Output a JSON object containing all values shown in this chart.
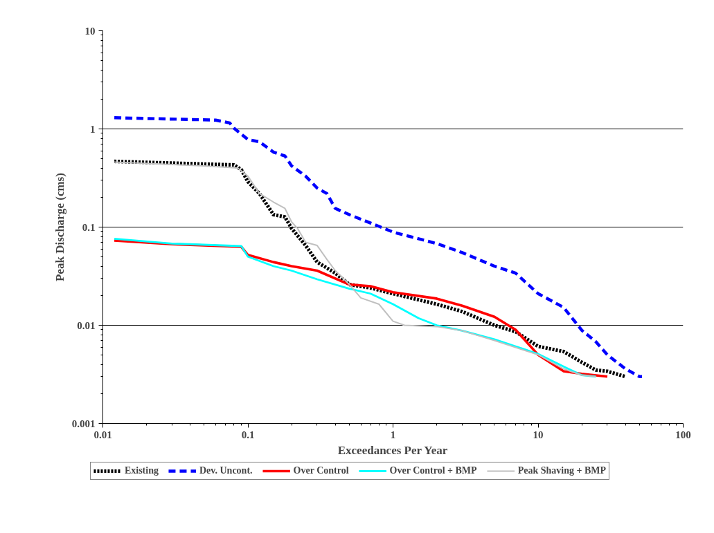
{
  "chart_data": {
    "type": "line",
    "xlabel": "Exceedances Per Year",
    "ylabel": "Peak Discharge (cms)",
    "log": "xy",
    "grid": "y",
    "legend": "bottom",
    "xlim": [
      0.01,
      100
    ],
    "xticks": [
      0.01,
      0.1,
      1,
      10,
      100
    ],
    "ylim": [
      0.001,
      10
    ],
    "yticks": [
      0.001,
      0.01,
      0.1,
      1,
      10
    ],
    "series": [
      {
        "name": "Existing",
        "color": "#000000",
        "line_style": "dotted",
        "x": [
          0.012,
          0.08,
          0.09,
          0.1,
          0.12,
          0.15,
          0.18,
          0.2,
          0.25,
          0.3,
          0.4,
          0.5,
          0.7,
          1,
          2,
          3,
          5,
          7,
          10,
          15,
          20,
          25,
          30,
          40
        ],
        "values": [
          0.467,
          0.43,
          0.385,
          0.29,
          0.22,
          0.134,
          0.127,
          0.097,
          0.065,
          0.044,
          0.034,
          0.026,
          0.024,
          0.021,
          0.0164,
          0.0138,
          0.01,
          0.0086,
          0.0061,
          0.0054,
          0.0042,
          0.0035,
          0.0034,
          0.003
        ]
      },
      {
        "name": "Dev. Uncont.",
        "color": "#0000ff",
        "line_style": "dashed",
        "x": [
          0.012,
          0.06,
          0.075,
          0.08,
          0.1,
          0.12,
          0.15,
          0.18,
          0.2,
          0.25,
          0.3,
          0.35,
          0.4,
          0.5,
          0.7,
          1,
          1.5,
          2,
          3,
          5,
          7,
          10,
          15,
          20,
          25,
          30,
          40,
          50,
          52
        ],
        "values": [
          1.3,
          1.23,
          1.15,
          1.02,
          0.78,
          0.74,
          0.58,
          0.53,
          0.42,
          0.33,
          0.25,
          0.22,
          0.155,
          0.134,
          0.11,
          0.089,
          0.076,
          0.068,
          0.055,
          0.04,
          0.034,
          0.021,
          0.0152,
          0.0089,
          0.0068,
          0.005,
          0.0036,
          0.003,
          0.003
        ]
      },
      {
        "name": "Over Control",
        "color": "#ff0000",
        "line_style": "solid",
        "x": [
          0.012,
          0.03,
          0.09,
          0.1,
          0.15,
          0.2,
          0.3,
          0.5,
          0.7,
          1,
          2,
          3,
          5,
          7,
          10,
          15,
          20,
          30
        ],
        "values": [
          0.073,
          0.067,
          0.063,
          0.052,
          0.044,
          0.04,
          0.036,
          0.026,
          0.025,
          0.0217,
          0.0187,
          0.0158,
          0.0122,
          0.009,
          0.005,
          0.0034,
          0.0032,
          0.003
        ]
      },
      {
        "name": "Over Control + BMP",
        "color": "#00ffff",
        "line_style": "solid",
        "x": [
          0.012,
          0.03,
          0.09,
          0.1,
          0.15,
          0.2,
          0.3,
          0.5,
          0.7,
          1,
          1.5,
          2,
          3,
          5,
          7,
          10,
          15,
          20,
          25
        ],
        "values": [
          0.076,
          0.068,
          0.064,
          0.05,
          0.04,
          0.036,
          0.0294,
          0.0236,
          0.021,
          0.0164,
          0.0118,
          0.01,
          0.0088,
          0.0072,
          0.0061,
          0.0051,
          0.0038,
          0.0031,
          0.003
        ]
      },
      {
        "name": "Peak Shaving + BMP",
        "color": "#c0c0c0",
        "line_style": "solid",
        "x": [
          0.012,
          0.05,
          0.085,
          0.1,
          0.12,
          0.15,
          0.18,
          0.2,
          0.22,
          0.25,
          0.3,
          0.35,
          0.4,
          0.5,
          0.6,
          0.8,
          1,
          1.2,
          2,
          3,
          5,
          10,
          15,
          20,
          25
        ],
        "values": [
          0.46,
          0.42,
          0.4,
          0.33,
          0.22,
          0.18,
          0.155,
          0.113,
          0.097,
          0.07,
          0.065,
          0.047,
          0.036,
          0.026,
          0.019,
          0.0164,
          0.011,
          0.01,
          0.0097,
          0.0088,
          0.007,
          0.005,
          0.0036,
          0.0031,
          0.003
        ]
      }
    ]
  }
}
